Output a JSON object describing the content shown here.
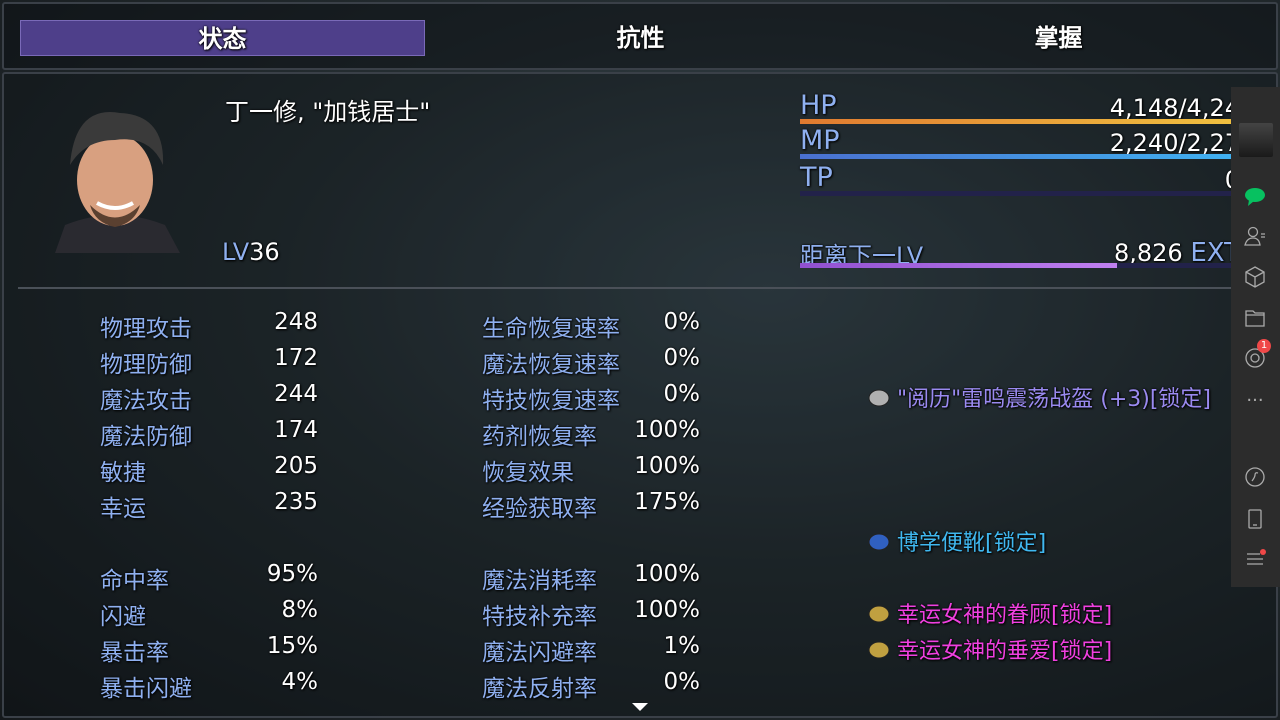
{
  "tabs": [
    {
      "label": "状态",
      "active": true
    },
    {
      "label": "抗性",
      "active": false
    },
    {
      "label": "掌握",
      "active": false
    }
  ],
  "character": {
    "name": "丁一修, \"加钱居士\"",
    "level_label": "LV",
    "level": "36"
  },
  "gauges": [
    {
      "label": "HP",
      "value": "4,148/4,24",
      "fill": 0.98,
      "colors": [
        "#e07a30",
        "#f0c040"
      ]
    },
    {
      "label": "MP",
      "value": "2,240/2,27",
      "fill": 0.98,
      "colors": [
        "#4a70d0",
        "#40b0f0"
      ]
    },
    {
      "label": "TP",
      "value": "0",
      "fill": 0,
      "colors": [
        "#40a040",
        "#80e060"
      ]
    },
    {
      "label": "距离下一LV",
      "value": "8,826",
      "unit": "EXT",
      "fill": 0.72,
      "colors": [
        "#9050d0",
        "#c080f0"
      ]
    }
  ],
  "stats_left": [
    {
      "label": "物理攻击",
      "value": "248"
    },
    {
      "label": "物理防御",
      "value": "172"
    },
    {
      "label": "魔法攻击",
      "value": "244"
    },
    {
      "label": "魔法防御",
      "value": "174"
    },
    {
      "label": "敏捷",
      "value": "205"
    },
    {
      "label": "幸运",
      "value": "235"
    },
    {
      "label": "命中率",
      "value": "95%"
    },
    {
      "label": "闪避",
      "value": "8%"
    },
    {
      "label": "暴击率",
      "value": "15%"
    },
    {
      "label": "暴击闪避",
      "value": "4%"
    }
  ],
  "stats_right": [
    {
      "label": "生命恢复速率",
      "value": "0%"
    },
    {
      "label": "魔法恢复速率",
      "value": "0%"
    },
    {
      "label": "特技恢复速率",
      "value": "0%"
    },
    {
      "label": "药剂恢复率",
      "value": "100%"
    },
    {
      "label": "恢复效果",
      "value": "100%"
    },
    {
      "label": "经验获取率",
      "value": "175%"
    },
    {
      "label": "魔法消耗率",
      "value": "100%"
    },
    {
      "label": "特技补充率",
      "value": "100%"
    },
    {
      "label": "魔法闪避率",
      "value": "1%"
    },
    {
      "label": "魔法反射率",
      "value": "0%"
    }
  ],
  "equipment": [
    {
      "name": "\"阅历\"雷鸣震荡战盔 (+3)[锁定]",
      "icon": "helmet-icon",
      "color": "#9a8af0"
    },
    {
      "name": "博学便靴[锁定]",
      "icon": "boots-icon",
      "color": "#40b8f0"
    },
    {
      "name": "幸运女神的眷顾[锁定]",
      "icon": "amulet-icon",
      "color": "#f040e0"
    },
    {
      "name": "幸运女神的垂爱[锁定]",
      "icon": "ring-icon",
      "color": "#f040e0"
    }
  ],
  "sidebar": {
    "items": [
      "avatar",
      "chat-icon",
      "contacts-icon",
      "cube-icon",
      "folder-icon",
      "aperture-icon",
      "more-icon",
      "music-icon",
      "phone-icon",
      "menu-icon"
    ],
    "badge": "1"
  }
}
